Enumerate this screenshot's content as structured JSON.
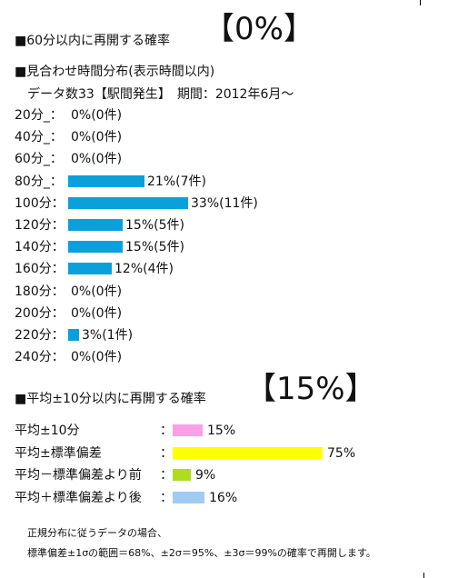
{
  "section1": {
    "title": "■60分以内に再開する確率",
    "big": "【0%】"
  },
  "section2": {
    "title": "■見合わせ時間分布(表示時間以内)",
    "subtitle": "データ数33【駅間発生】　期間：2012年6月～"
  },
  "section3": {
    "title": "■平均±10分以内に再開する確率",
    "big": "【15%】"
  },
  "chart_data": [
    {
      "type": "bar",
      "orientation": "horizontal",
      "categories": [
        "20分_",
        "40分_",
        "60分_",
        "80分_",
        "100分",
        "120分",
        "140分",
        "160分",
        "180分",
        "200分",
        "220分",
        "240分"
      ],
      "values": [
        0,
        0,
        0,
        21,
        33,
        15,
        15,
        12,
        0,
        0,
        3,
        0
      ],
      "labels": [
        "0%(0件)",
        "0%(0件)",
        "0%(0件)",
        "21%(7件)",
        "33%(11件)",
        "15%(5件)",
        "15%(5件)",
        "12%(4件)",
        "0%(0件)",
        "0%(0件)",
        "3%(1件)",
        "0%(0件)"
      ],
      "color": "#0aa0dc",
      "ylim": [
        0,
        100
      ]
    },
    {
      "type": "bar",
      "orientation": "horizontal",
      "categories": [
        "平均±10分",
        "平均±標準偏差",
        "平均－標準偏差より前",
        "平均＋標準偏差より後"
      ],
      "values": [
        15,
        75,
        9,
        16
      ],
      "labels": [
        "15%",
        "75%",
        "9%",
        "16%"
      ],
      "colors": [
        "#f9a0e6",
        "#ffff00",
        "#b0dc20",
        "#a0ccf4"
      ],
      "ylim": [
        0,
        100
      ]
    }
  ],
  "note": {
    "line1": "正規分布に従うデータの場合、",
    "line2": "標準偏差±1σの範囲＝68%、±2σ＝95%、±3σ＝99%の確率で再開します。"
  }
}
